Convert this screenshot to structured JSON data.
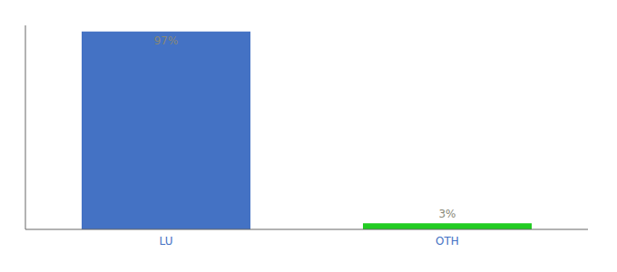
{
  "chart_data": {
    "type": "bar",
    "categories": [
      "LU",
      "OTH"
    ],
    "values": [
      97,
      3
    ],
    "colors": [
      "#4472c4",
      "#22cc22"
    ],
    "ylim": [
      0,
      100
    ],
    "data_labels": true,
    "value_labels": [
      "97%",
      "3%"
    ],
    "tick_labels": "x",
    "grid": false
  }
}
